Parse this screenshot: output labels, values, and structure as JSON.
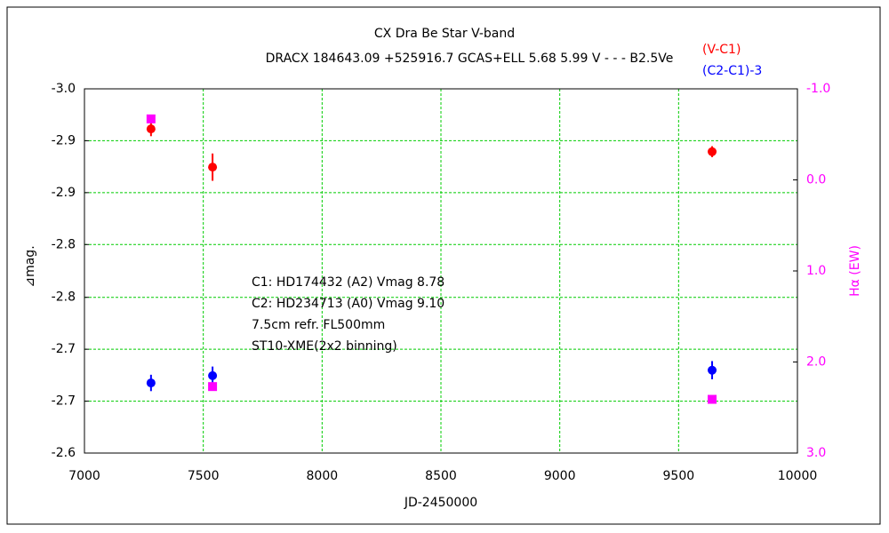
{
  "chart_data": {
    "type": "scatter",
    "title": "CX Dra    Be Star    V-band",
    "subtitle": "DRACX 184643.09 +525916.7 GCAS+ELL 5.68 5.99 V - - - B2.5Ve",
    "x_label": "JD-2450000",
    "y_label": "⊿mag.",
    "y2_label": "Hα (EW)",
    "y2_label_color": "#ff00ff",
    "xlim": [
      7000,
      10000
    ],
    "xticks": [
      7000,
      7500,
      8000,
      8500,
      9000,
      9500,
      10000
    ],
    "ylim": [
      -3.0,
      -2.6
    ],
    "y_inverted": true,
    "yticks": [
      {
        "value": -3.0,
        "label": "-3.0"
      },
      {
        "value": -2.943,
        "label": "-2.9"
      },
      {
        "value": -2.886,
        "label": "-2.9"
      },
      {
        "value": -2.829,
        "label": "-2.8"
      },
      {
        "value": -2.771,
        "label": "-2.8"
      },
      {
        "value": -2.714,
        "label": "-2.7"
      },
      {
        "value": -2.657,
        "label": "-2.7"
      },
      {
        "value": -2.6,
        "label": "-2.6"
      }
    ],
    "y2lim": [
      -1.0,
      3.0
    ],
    "y2_inverted": true,
    "y2ticks": [
      {
        "value": -1.0,
        "label": "-1.0"
      },
      {
        "value": 0.0,
        "label": "0.0"
      },
      {
        "value": 1.0,
        "label": "1.0"
      },
      {
        "value": 2.0,
        "label": "2.0"
      },
      {
        "value": 3.0,
        "label": "3.0"
      }
    ],
    "y2tick_color": "#ff00ff",
    "grid": true,
    "grid_color": "#00cc00",
    "series": [
      {
        "name": "(V-C1)",
        "color": "#ff0000",
        "marker": "circle",
        "x": [
          7280,
          7539,
          9641
        ],
        "values": [
          -2.956,
          -2.914,
          -2.931
        ],
        "errors": [
          0.008,
          0.015,
          0.006
        ]
      },
      {
        "name": "(C2-C1)-3",
        "color": "#0000ff",
        "marker": "circle",
        "x": [
          7280,
          7539,
          9641
        ],
        "values": [
          -2.677,
          -2.685,
          -2.691
        ],
        "errors": [
          0.009,
          0.01,
          0.01
        ]
      },
      {
        "color": "#ff00ff",
        "marker": "square",
        "axis": "y2",
        "x": [
          7280,
          7539,
          9641
        ],
        "values": [
          -0.67,
          2.27,
          2.41
        ]
      }
    ],
    "annotations": [
      "C1: HD174432 (A2) Vmag 8.78",
      "C2: HD234713 (A0) Vmag 9.10",
      "7.5cm refr. FL500mm",
      "ST10-XME(2x2 binning)"
    ]
  }
}
